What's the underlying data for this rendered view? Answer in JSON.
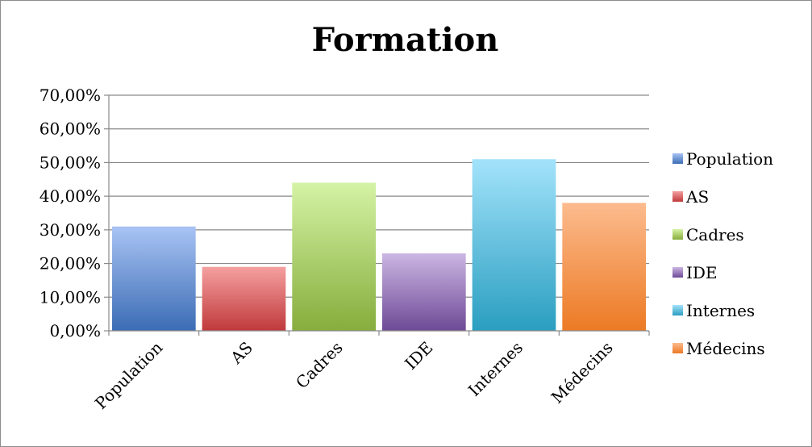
{
  "chart_data": {
    "type": "bar",
    "title": "Formation",
    "xlabel": "",
    "ylabel": "",
    "categories": [
      "Population",
      "AS",
      "Cadres",
      "IDE",
      "Internes",
      "Médecins"
    ],
    "values": [
      0.31,
      0.19,
      0.44,
      0.23,
      0.51,
      0.38
    ],
    "ylim": [
      0,
      0.7
    ],
    "yticks": [
      0,
      0.1,
      0.2,
      0.3,
      0.4,
      0.5,
      0.6,
      0.7
    ],
    "ytick_labels": [
      "0,00%",
      "10,00%",
      "20,00%",
      "30,00%",
      "40,00%",
      "50,00%",
      "60,00%",
      "70,00%"
    ],
    "grid": true,
    "legend": {
      "placement": "right",
      "entries": [
        "Population",
        "AS",
        "Cadres",
        "IDE",
        "Internes",
        "Médecins"
      ]
    },
    "colors": [
      {
        "top": "#a9c4f4",
        "bottom": "#3b6cb5"
      },
      {
        "top": "#f5a0a0",
        "bottom": "#c0393b"
      },
      {
        "top": "#d5f3a5",
        "bottom": "#86ad3c"
      },
      {
        "top": "#cbb6e3",
        "bottom": "#6e4a96"
      },
      {
        "top": "#a3e3fb",
        "bottom": "#2a9ec0"
      },
      {
        "top": "#fcbb8e",
        "bottom": "#ec7a24"
      }
    ]
  }
}
